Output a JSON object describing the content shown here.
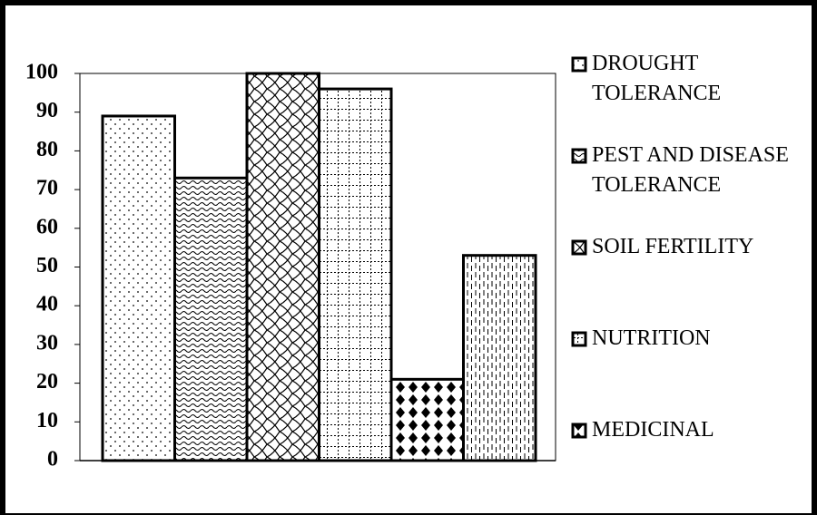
{
  "chart_data": {
    "type": "bar",
    "series": [
      {
        "name": "DROUGHT TOLERANCE",
        "values": [
          89
        ]
      },
      {
        "name": "PEST AND DISEASE TOLERANCE",
        "values": [
          73
        ]
      },
      {
        "name": "SOIL FERTILITY",
        "values": [
          100
        ]
      },
      {
        "name": "NUTRITION",
        "values": [
          96
        ]
      },
      {
        "name": "MEDICINAL",
        "values": [
          21
        ]
      },
      {
        "values": [
          53
        ]
      }
    ],
    "ylim": [
      0,
      100
    ],
    "yticks": [
      0,
      10,
      20,
      30,
      40,
      50,
      60,
      70,
      80,
      90,
      100
    ],
    "color": "#000000",
    "legend": "right"
  }
}
